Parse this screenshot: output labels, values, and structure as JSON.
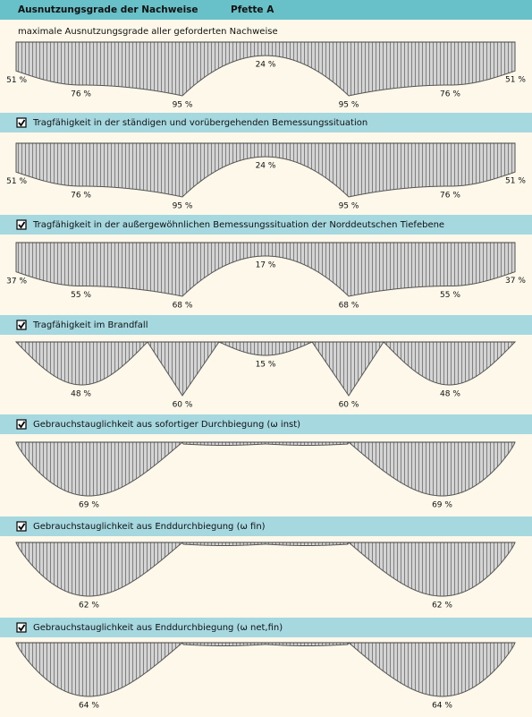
{
  "header": {
    "title": "Ausnutzungsgrade der Nachweise",
    "subtitle": "Pfette A"
  },
  "sections": [
    {
      "title": "maximale Ausnutzungsgrade aller geforderten Nachweise",
      "end": {
        "value": 51,
        "label": "51 %"
      },
      "span": {
        "value": 76,
        "label": "76 %"
      },
      "support": {
        "value": 95,
        "label": "95 %"
      },
      "middle": {
        "value": 24,
        "label": "24 %"
      }
    },
    {
      "title": "Tragfähigkeit in der ständigen und vorübergehenden Bemessungssituation",
      "checkbox": true,
      "end": {
        "value": 51,
        "label": "51 %"
      },
      "span": {
        "value": 76,
        "label": "76 %"
      },
      "support": {
        "value": 95,
        "label": "95 %"
      },
      "middle": {
        "value": 24,
        "label": "24 %"
      }
    },
    {
      "title": "Tragfähigkeit in der außergewöhnlichen Bemessungssituation der Norddeutschen Tiefebene",
      "checkbox": true,
      "end": {
        "value": 37,
        "label": "37 %"
      },
      "span": {
        "value": 55,
        "label": "55 %"
      },
      "support": {
        "value": 68,
        "label": "68 %"
      },
      "middle": {
        "value": 17,
        "label": "17 %"
      }
    },
    {
      "title": "Tragfähigkeit im Brandfall",
      "checkbox": true,
      "span": {
        "value": 48,
        "label": "48 %"
      },
      "support": {
        "value": 60,
        "label": "60 %"
      },
      "middle": {
        "value": 15,
        "label": "15 %"
      }
    },
    {
      "title": "Gebrauchstauglichkeit aus sofortiger Durchbiegung (ω inst)",
      "checkbox": true,
      "span": {
        "value": 69,
        "label": "69 %"
      }
    },
    {
      "title": "Gebrauchstauglichkeit aus Enddurchbiegung (ω fin)",
      "checkbox": true,
      "span": {
        "value": 62,
        "label": "62 %"
      }
    },
    {
      "title": "Gebrauchstauglichkeit aus Enddurchbiegung (ω net,fin)",
      "checkbox": true,
      "span": {
        "value": 64,
        "label": "64 %"
      }
    }
  ]
}
